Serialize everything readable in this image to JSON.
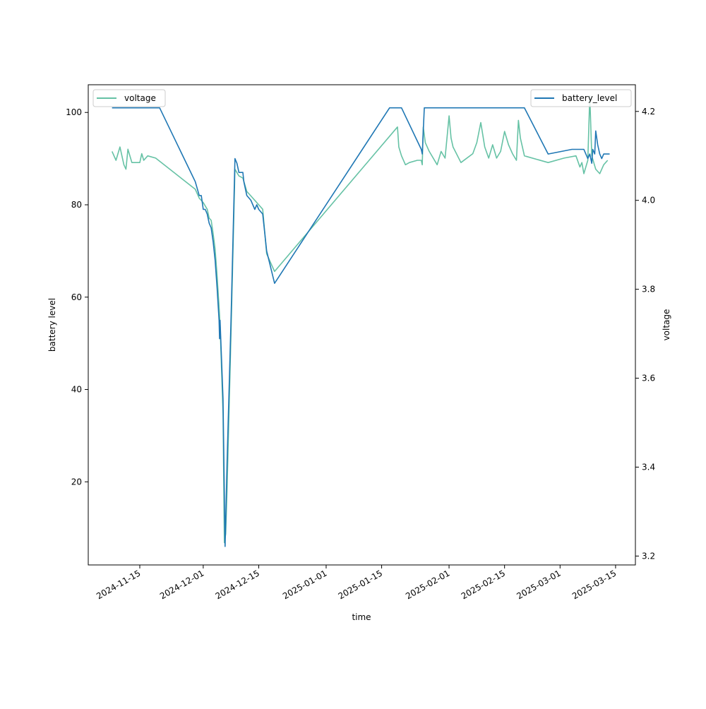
{
  "chart_data": {
    "type": "line",
    "title": "",
    "xlabel": "time",
    "ylabel_left": "battery level",
    "ylabel_right": "voltage",
    "x_ticks": [
      "2024-11-15",
      "2024-12-01",
      "2024-12-15",
      "2025-01-01",
      "2025-01-15",
      "2025-02-01",
      "2025-02-15",
      "2025-03-01",
      "2025-03-15"
    ],
    "y_left_ticks": [
      20,
      40,
      60,
      80,
      100
    ],
    "y_right_ticks": [
      3.2,
      3.4,
      3.6,
      3.8,
      4.0,
      4.2
    ],
    "xlim": [
      "2024-11-02",
      "2025-03-20"
    ],
    "ylim_left": [
      2,
      106
    ],
    "ylim_right": [
      3.18,
      4.26
    ],
    "grid": false,
    "series": [
      {
        "name": "battery_level",
        "axis": "left",
        "color": "#1f77b4",
        "legend_loc": "upper right",
        "points": [
          [
            "2024-11-08",
            101
          ],
          [
            "2024-11-12",
            101
          ],
          [
            "2024-11-15",
            101
          ],
          [
            "2024-11-18",
            101
          ],
          [
            "2024-11-20",
            101
          ],
          [
            "2024-11-29",
            85
          ],
          [
            "2024-11-30",
            82
          ],
          [
            "2024-11-30T12:00",
            82
          ],
          [
            "2024-12-01",
            79
          ],
          [
            "2024-12-01T12:00",
            79
          ],
          [
            "2024-12-02",
            78
          ],
          [
            "2024-12-02T12:00",
            76
          ],
          [
            "2024-12-03",
            75
          ],
          [
            "2024-12-03T12:00",
            72
          ],
          [
            "2024-12-04",
            68
          ],
          [
            "2024-12-04T12:00",
            62
          ],
          [
            "2024-12-05",
            55
          ],
          [
            "2024-12-05T03:00",
            51
          ],
          [
            "2024-12-05T06:00",
            55
          ],
          [
            "2024-12-06",
            38
          ],
          [
            "2024-12-06T12:00",
            6
          ],
          [
            "2024-12-07",
            24
          ],
          [
            "2024-12-08",
            55
          ],
          [
            "2024-12-09",
            90
          ],
          [
            "2024-12-09T12:00",
            89
          ],
          [
            "2024-12-10",
            87
          ],
          [
            "2024-12-11",
            87
          ],
          [
            "2024-12-11T06:00",
            85
          ],
          [
            "2024-12-11T18:00",
            83
          ],
          [
            "2024-12-12",
            82
          ],
          [
            "2024-12-13",
            81
          ],
          [
            "2024-12-14",
            79
          ],
          [
            "2024-12-14T12:00",
            80
          ],
          [
            "2024-12-15",
            79
          ],
          [
            "2024-12-16",
            78
          ],
          [
            "2024-12-16T12:00",
            74
          ],
          [
            "2024-12-17",
            70
          ],
          [
            "2024-12-19",
            63
          ],
          [
            "2025-01-17",
            101
          ],
          [
            "2025-01-20",
            101
          ],
          [
            "2025-01-25",
            92
          ],
          [
            "2025-01-25T06:00",
            91
          ],
          [
            "2025-01-25T18:00",
            101
          ],
          [
            "2025-01-26",
            101
          ],
          [
            "2025-02-20",
            101
          ],
          [
            "2025-02-26",
            91
          ],
          [
            "2025-03-04",
            92
          ],
          [
            "2025-03-07",
            92
          ],
          [
            "2025-03-07T12:00",
            91
          ],
          [
            "2025-03-08",
            90
          ],
          [
            "2025-03-08T12:00",
            91
          ],
          [
            "2025-03-09",
            89
          ],
          [
            "2025-03-09T06:00",
            92
          ],
          [
            "2025-03-09T18:00",
            91
          ],
          [
            "2025-03-10",
            96
          ],
          [
            "2025-03-10T12:00",
            93
          ],
          [
            "2025-03-11",
            91
          ],
          [
            "2025-03-11T12:00",
            90
          ],
          [
            "2025-03-12",
            91
          ],
          [
            "2025-03-13",
            91
          ],
          [
            "2025-03-13T12:00",
            91
          ]
        ]
      },
      {
        "name": "voltage",
        "axis": "right",
        "color": "#66c2a5",
        "legend_loc": "upper left",
        "points": [
          [
            "2024-11-08",
            4.11
          ],
          [
            "2024-11-09",
            4.09
          ],
          [
            "2024-11-10",
            4.12
          ],
          [
            "2024-11-11",
            4.08
          ],
          [
            "2024-11-11T12:00",
            4.07
          ],
          [
            "2024-11-12",
            4.115
          ],
          [
            "2024-11-13",
            4.085
          ],
          [
            "2024-11-15",
            4.085
          ],
          [
            "2024-11-15T12:00",
            4.105
          ],
          [
            "2024-11-16",
            4.09
          ],
          [
            "2024-11-17",
            4.1
          ],
          [
            "2024-11-19",
            4.095
          ],
          [
            "2024-11-29",
            4.025
          ],
          [
            "2024-11-30",
            4.005
          ],
          [
            "2024-12-01",
            3.995
          ],
          [
            "2024-12-02",
            3.98
          ],
          [
            "2024-12-02T12:00",
            3.96
          ],
          [
            "2024-12-03",
            3.955
          ],
          [
            "2024-12-03T12:00",
            3.925
          ],
          [
            "2024-12-04",
            3.89
          ],
          [
            "2024-12-04T12:00",
            3.83
          ],
          [
            "2024-12-05",
            3.76
          ],
          [
            "2024-12-05T06:00",
            3.72
          ],
          [
            "2024-12-06",
            3.52
          ],
          [
            "2024-12-06T08:00",
            3.23
          ],
          [
            "2024-12-06T16:00",
            3.25
          ],
          [
            "2024-12-07",
            3.35
          ],
          [
            "2024-12-08",
            3.7
          ],
          [
            "2024-12-09",
            4.07
          ],
          [
            "2024-12-10",
            4.055
          ],
          [
            "2024-12-11",
            4.05
          ],
          [
            "2024-12-12",
            4.02
          ],
          [
            "2024-12-13",
            4.01
          ],
          [
            "2024-12-14",
            4.0
          ],
          [
            "2024-12-15",
            3.99
          ],
          [
            "2024-12-16",
            3.98
          ],
          [
            "2024-12-17",
            3.88
          ],
          [
            "2024-12-18",
            3.86
          ],
          [
            "2024-12-19",
            3.84
          ],
          [
            "2025-01-19",
            4.165
          ],
          [
            "2025-01-19T08:00",
            4.12
          ],
          [
            "2025-01-20",
            4.1
          ],
          [
            "2025-01-21",
            4.08
          ],
          [
            "2025-01-22",
            4.085
          ],
          [
            "2025-01-24",
            4.09
          ],
          [
            "2025-01-25",
            4.09
          ],
          [
            "2025-01-25T06:00",
            4.08
          ],
          [
            "2025-01-25T12:00",
            4.165
          ],
          [
            "2025-01-26",
            4.13
          ],
          [
            "2025-01-27",
            4.11
          ],
          [
            "2025-01-29",
            4.08
          ],
          [
            "2025-01-30",
            4.11
          ],
          [
            "2025-01-31",
            4.095
          ],
          [
            "2025-02-01",
            4.19
          ],
          [
            "2025-02-01T12:00",
            4.14
          ],
          [
            "2025-02-02",
            4.12
          ],
          [
            "2025-02-04",
            4.085
          ],
          [
            "2025-02-07",
            4.105
          ],
          [
            "2025-02-08",
            4.13
          ],
          [
            "2025-02-09",
            4.175
          ],
          [
            "2025-02-10",
            4.12
          ],
          [
            "2025-02-11",
            4.095
          ],
          [
            "2025-02-12",
            4.125
          ],
          [
            "2025-02-13",
            4.095
          ],
          [
            "2025-02-14",
            4.11
          ],
          [
            "2025-02-15",
            4.155
          ],
          [
            "2025-02-16",
            4.125
          ],
          [
            "2025-02-17",
            4.105
          ],
          [
            "2025-02-18",
            4.09
          ],
          [
            "2025-02-18T12:00",
            4.18
          ],
          [
            "2025-02-19",
            4.14
          ],
          [
            "2025-02-20",
            4.1
          ],
          [
            "2025-02-26",
            4.085
          ],
          [
            "2025-03-02",
            4.095
          ],
          [
            "2025-03-05",
            4.1
          ],
          [
            "2025-03-06",
            4.075
          ],
          [
            "2025-03-06T12:00",
            4.085
          ],
          [
            "2025-03-07",
            4.06
          ],
          [
            "2025-03-08",
            4.09
          ],
          [
            "2025-03-08T12:00",
            4.235
          ],
          [
            "2025-03-09",
            4.1
          ],
          [
            "2025-03-10",
            4.07
          ],
          [
            "2025-03-11",
            4.06
          ],
          [
            "2025-03-12",
            4.08
          ],
          [
            "2025-03-13",
            4.09
          ]
        ]
      }
    ]
  }
}
